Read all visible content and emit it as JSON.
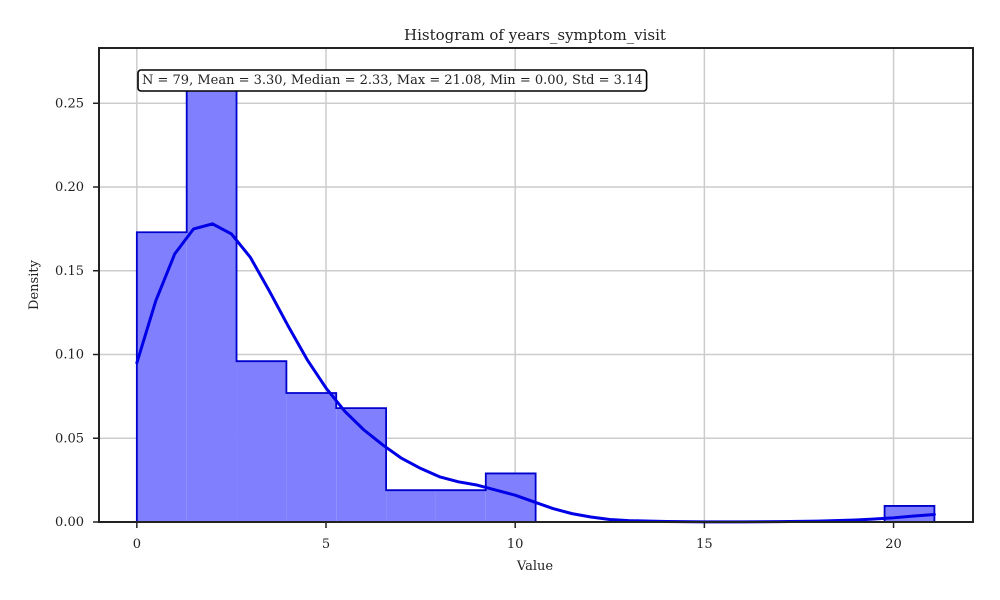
{
  "chart_data": {
    "type": "histogram",
    "title": "Histogram of years_symptom_visit",
    "xlabel": "Value",
    "ylabel": "Density",
    "xlim": [
      -1.0,
      22.1
    ],
    "ylim": [
      0.0,
      0.283
    ],
    "xticks": [
      0,
      5,
      10,
      15,
      20
    ],
    "yticks": [
      0.0,
      0.05,
      0.1,
      0.15,
      0.2,
      0.25
    ],
    "ytick_labels": [
      "0.00",
      "0.05",
      "0.10",
      "0.15",
      "0.20",
      "0.25"
    ],
    "xtick_labels": [
      "0",
      "5",
      "10",
      "15",
      "20"
    ],
    "grid": true,
    "bin_edges": [
      0.0,
      1.318,
      2.635,
      3.953,
      5.27,
      6.588,
      7.905,
      9.223,
      10.54,
      11.858,
      13.175,
      14.493,
      15.81,
      17.128,
      18.445,
      19.763,
      21.08
    ],
    "densities": [
      0.173,
      0.265,
      0.096,
      0.077,
      0.068,
      0.019,
      0.019,
      0.029,
      0.0,
      0.0,
      0.0,
      0.0,
      0.0,
      0.0,
      0.0,
      0.0096
    ],
    "kde": {
      "x": [
        0,
        0.5,
        1,
        1.5,
        2,
        2.5,
        3,
        3.5,
        4,
        4.5,
        5,
        5.5,
        6,
        6.5,
        7,
        7.5,
        8,
        8.5,
        9,
        9.5,
        10,
        10.5,
        11,
        11.5,
        12,
        12.5,
        13,
        14,
        15,
        16,
        17,
        18,
        19,
        19.5,
        20,
        20.5,
        21.08
      ],
      "y": [
        0.095,
        0.132,
        0.16,
        0.175,
        0.178,
        0.172,
        0.158,
        0.138,
        0.117,
        0.097,
        0.08,
        0.066,
        0.055,
        0.046,
        0.038,
        0.032,
        0.027,
        0.024,
        0.022,
        0.019,
        0.016,
        0.012,
        0.008,
        0.005,
        0.003,
        0.0015,
        0.0008,
        0.0003,
        0.0001,
        0.0001,
        0.0002,
        0.0005,
        0.0012,
        0.0018,
        0.0025,
        0.0035,
        0.0045
      ]
    },
    "stats_text": "N = 79, Mean = 3.30, Median = 2.33, Max = 21.08, Min = 0.00, Std = 3.14",
    "colors": {
      "bar_fill": "#8080ff",
      "bar_edge": "#0000cc",
      "kde_line": "#0000e6",
      "grid": "#cccccc",
      "frame": "#222222"
    }
  }
}
